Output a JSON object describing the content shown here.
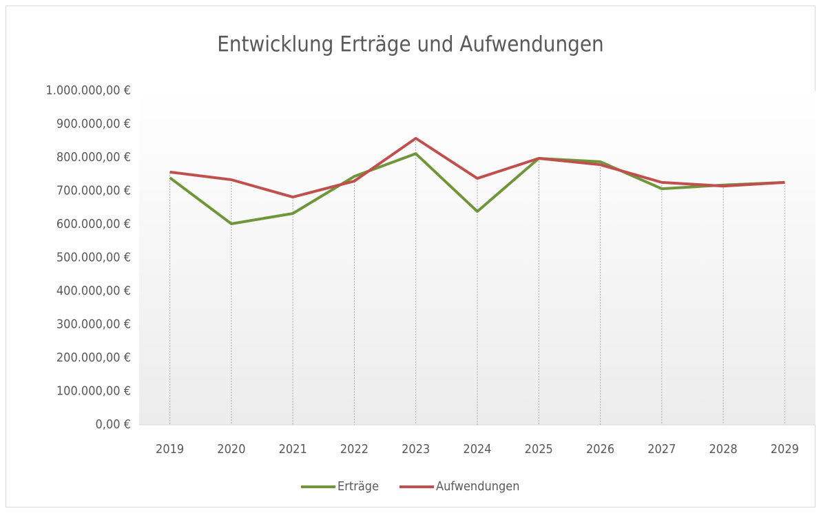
{
  "chart_data": {
    "type": "line",
    "title": "Entwicklung Erträge und Aufwendungen",
    "categories": [
      "2019",
      "2020",
      "2021",
      "2022",
      "2023",
      "2024",
      "2025",
      "2026",
      "2027",
      "2028",
      "2029"
    ],
    "series": [
      {
        "name": "Erträge",
        "color": "#70963a",
        "values": [
          740000,
          602000,
          633000,
          744000,
          812000,
          639000,
          798000,
          788000,
          707000,
          718000,
          726000
        ]
      },
      {
        "name": "Aufwendungen",
        "color": "#c0504d",
        "values": [
          757000,
          734000,
          682000,
          730000,
          858000,
          738000,
          798000,
          779000,
          726000,
          715000,
          726000
        ]
      }
    ],
    "ylim": [
      0,
      1000000
    ],
    "yticks": [
      {
        "value": 0,
        "label": "0,00 €"
      },
      {
        "value": 100000,
        "label": "100.000,00 €"
      },
      {
        "value": 200000,
        "label": "200.000,00 €"
      },
      {
        "value": 300000,
        "label": "300.000,00 €"
      },
      {
        "value": 400000,
        "label": "400.000,00 €"
      },
      {
        "value": 500000,
        "label": "500.000,00 €"
      },
      {
        "value": 600000,
        "label": "600.000,00 €"
      },
      {
        "value": 700000,
        "label": "700.000,00 €"
      },
      {
        "value": 800000,
        "label": "800.000,00 €"
      },
      {
        "value": 900000,
        "label": "900.000,00 €"
      },
      {
        "value": 1000000,
        "label": "1.000.000,00 €"
      }
    ],
    "drop_lines": true,
    "legend": "bottom"
  }
}
